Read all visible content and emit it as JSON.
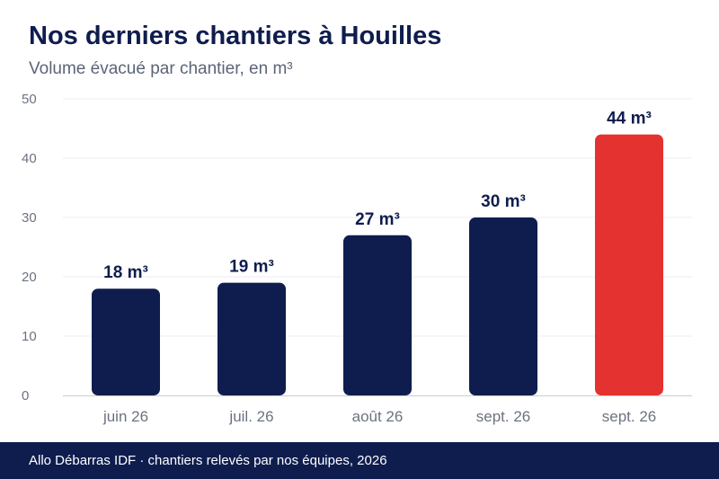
{
  "header": {
    "title": "Nos derniers chantiers à Houilles",
    "subtitle": "Volume évacué par chantier, en m³"
  },
  "footer": {
    "text": "Allo Débarras IDF · chantiers relevés par nos équipes, 2026"
  },
  "colors": {
    "primary": "#0f1d4e",
    "highlight": "#e3322f"
  },
  "chart_data": {
    "type": "bar",
    "categories": [
      "juin 26",
      "juil. 26",
      "août 26",
      "sept. 26",
      "sept. 26"
    ],
    "values": [
      18,
      19,
      27,
      30,
      44
    ],
    "data_labels": [
      "18 m³",
      "19 m³",
      "27 m³",
      "30 m³",
      "44 m³"
    ],
    "highlight_index": 4,
    "ylim": [
      0,
      50
    ],
    "yticks": [
      0,
      10,
      20,
      30,
      40,
      50
    ],
    "grid": true
  }
}
